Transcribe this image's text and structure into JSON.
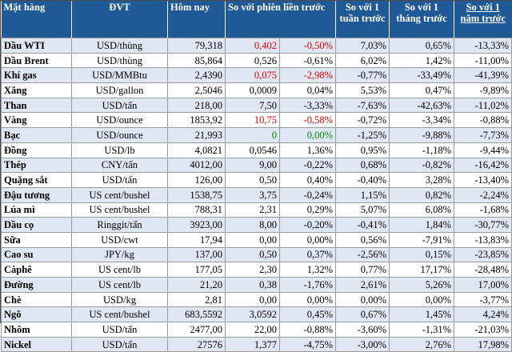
{
  "header": {
    "item": "Mặt hàng",
    "unit": "ĐVT",
    "today": "Hôm nay",
    "vs_prev": "So với phiên liền trước",
    "vs_week": "So với 1 tuần trước",
    "vs_month": "So với 1 tháng trước",
    "vs_year": "So với 1 năm trước"
  },
  "rows": [
    {
      "name": "Dầu WTI",
      "unit": "USD/thùng",
      "price": "79,318",
      "chg": "0,402",
      "pct": "-0,50%",
      "week": "7,03%",
      "month": "0,65%",
      "year": "-13,33%",
      "chg_color": "#e00000",
      "pct_color": "#e00000"
    },
    {
      "name": "Dầu Brent",
      "unit": "USD/thùng",
      "price": "85,864",
      "chg": "0,526",
      "pct": "-0,61%",
      "week": "6,02%",
      "month": "1,42%",
      "year": "-11,00%",
      "chg_color": "#000000",
      "pct_color": "#000000"
    },
    {
      "name": "Khí gas",
      "unit": "USD/MMBtu",
      "price": "2,4390",
      "chg": "0,075",
      "pct": "-2,98%",
      "week": "-0,77%",
      "month": "-33,49%",
      "year": "-41,39%",
      "chg_color": "#e00000",
      "pct_color": "#e00000"
    },
    {
      "name": "Xăng",
      "unit": "USD/gallon",
      "price": "2,5046",
      "chg": "0,0009",
      "pct": "0,04%",
      "week": "5,53%",
      "month": "0,47%",
      "year": "-9,89%",
      "chg_color": "#000000",
      "pct_color": "#000000"
    },
    {
      "name": "Than",
      "unit": "USD/tấn",
      "price": "218,00",
      "chg": "7,50",
      "pct": "-3,33%",
      "week": "-7,63%",
      "month": "-42,63%",
      "year": "-11,02%",
      "chg_color": "#000000",
      "pct_color": "#000000"
    },
    {
      "name": "Vàng",
      "unit": "USD/ounce",
      "price": "1853,92",
      "chg": "10,75",
      "pct": "-0,58%",
      "week": "-0,72%",
      "month": "-3,34%",
      "year": "-0,88%",
      "chg_color": "#e00000",
      "pct_color": "#e00000"
    },
    {
      "name": "Bạc",
      "unit": "USD/ounce",
      "price": "21,993",
      "chg": "0",
      "pct": "0,00%",
      "week": "-1,25%",
      "month": "-9,88%",
      "year": "-7,73%",
      "chg_color": "#008a00",
      "pct_color": "#008a00"
    },
    {
      "name": "Đồng",
      "unit": "USD/lb",
      "price": "4,0821",
      "chg": "0,0546",
      "pct": "1,36%",
      "week": "0,95%",
      "month": "-1,18%",
      "year": "-9,44%",
      "chg_color": "#000000",
      "pct_color": "#000000"
    },
    {
      "name": "Thép",
      "unit": "CNY/tấn",
      "price": "4012,00",
      "chg": "9,00",
      "pct": "-0,22%",
      "week": "0,68%",
      "month": "-0,82%",
      "year": "-16,42%",
      "chg_color": "#000000",
      "pct_color": "#000000"
    },
    {
      "name": "Quặng sắt",
      "unit": "USD/tấn",
      "price": "126,00",
      "chg": "0,50",
      "pct": "0,40%",
      "week": "-0,40%",
      "month": "3,28%",
      "year": "-13,40%",
      "chg_color": "#000000",
      "pct_color": "#000000"
    },
    {
      "name": "Đậu tương",
      "unit": "US cent/bushel",
      "price": "1538,75",
      "chg": "3,75",
      "pct": "-0,24%",
      "week": "1,15%",
      "month": "0,82%",
      "year": "-2,24%",
      "chg_color": "#000000",
      "pct_color": "#000000"
    },
    {
      "name": "Lúa mì",
      "unit": "US cent/bushel",
      "price": "788,31",
      "chg": "2,31",
      "pct": "0,29%",
      "week": "5,07%",
      "month": "6,08%",
      "year": "-1,68%",
      "chg_color": "#000000",
      "pct_color": "#000000"
    },
    {
      "name": "Dầu cọ",
      "unit": "Ringgit/tấn",
      "price": "3923,00",
      "chg": "8,00",
      "pct": "-0,20%",
      "week": "-0,41%",
      "month": "1,84%",
      "year": "-30,77%",
      "chg_color": "#000000",
      "pct_color": "#000000"
    },
    {
      "name": "Sữa",
      "unit": "USD/cwt",
      "price": "17,94",
      "chg": "0,00",
      "pct": "0,00%",
      "week": "0,56%",
      "month": "-7,91%",
      "year": "-13,83%",
      "chg_color": "#000000",
      "pct_color": "#000000"
    },
    {
      "name": "Cao su",
      "unit": "JPY/kg",
      "price": "137,00",
      "chg": "0,50",
      "pct": "0,37%",
      "week": "-2,56%",
      "month": "0,15%",
      "year": "-23,85%",
      "chg_color": "#000000",
      "pct_color": "#000000"
    },
    {
      "name": "Càphê",
      "unit": "US cent/lb",
      "price": "177,05",
      "chg": "2,30",
      "pct": "1,32%",
      "week": "0,77%",
      "month": "17,17%",
      "year": "-28,48%",
      "chg_color": "#000000",
      "pct_color": "#000000"
    },
    {
      "name": "Đường",
      "unit": "US cent/lb",
      "price": "21,20",
      "chg": "0,38",
      "pct": "-1,76%",
      "week": "2,61%",
      "month": "5,26%",
      "year": "17,00%",
      "chg_color": "#000000",
      "pct_color": "#000000"
    },
    {
      "name": "Chè",
      "unit": "USD/kg",
      "price": "2,81",
      "chg": "0,00",
      "pct": "0,00%",
      "week": "0,00%",
      "month": "0,00%",
      "year": "-3,77%",
      "chg_color": "#000000",
      "pct_color": "#000000"
    },
    {
      "name": "Ngô",
      "unit": "US cent/bushel",
      "price": "683,5592",
      "chg": "3,0592",
      "pct": "0,45%",
      "week": "0,67%",
      "month": "1,45%",
      "year": "4,24%",
      "chg_color": "#000000",
      "pct_color": "#000000"
    },
    {
      "name": "Nhôm",
      "unit": "USD/tấn",
      "price": "2477,00",
      "chg": "22,00",
      "pct": "-0,88%",
      "week": "-3,60%",
      "month": "-1,31%",
      "year": "-21,03%",
      "chg_color": "#000000",
      "pct_color": "#000000"
    },
    {
      "name": "Nickel",
      "unit": "USD/tấn",
      "price": "27576",
      "chg": "1,377",
      "pct": "-4,75%",
      "week": "-3,00%",
      "month": "2,76%",
      "year": "17,98%",
      "chg_color": "#000000",
      "pct_color": "#000000"
    }
  ],
  "colors": {
    "header_bg": "#1f5a96",
    "row_stripe": "#dfe7f3",
    "negative_red": "#e00000",
    "zero_green": "#008a00"
  }
}
